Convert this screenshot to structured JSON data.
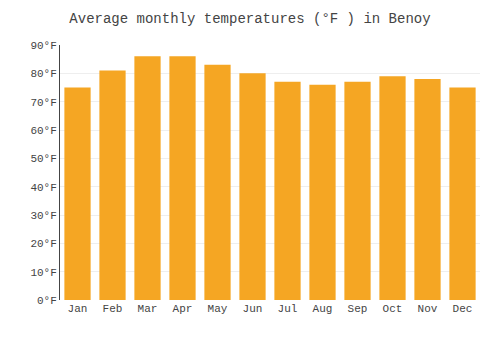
{
  "chart_data": {
    "type": "bar",
    "title": "Average monthly temperatures (°F ) in Benoy",
    "categories": [
      "Jan",
      "Feb",
      "Mar",
      "Apr",
      "May",
      "Jun",
      "Jul",
      "Aug",
      "Sep",
      "Oct",
      "Nov",
      "Dec"
    ],
    "values": [
      75,
      81,
      86,
      86,
      83,
      80,
      77,
      76,
      77,
      79,
      78,
      75
    ],
    "color": "#F5A623",
    "ylim": [
      0,
      90
    ],
    "yticks": [
      {
        "value": 0,
        "label": "0°F"
      },
      {
        "value": 10,
        "label": "10°F"
      },
      {
        "value": 20,
        "label": "20°F"
      },
      {
        "value": 30,
        "label": "30°F"
      },
      {
        "value": 40,
        "label": "40°F"
      },
      {
        "value": 50,
        "label": "50°F"
      },
      {
        "value": 60,
        "label": "60°F"
      },
      {
        "value": 70,
        "label": "70°F"
      },
      {
        "value": 80,
        "label": "80°F"
      },
      {
        "value": 90,
        "label": "90°F"
      }
    ],
    "grid": true
  }
}
